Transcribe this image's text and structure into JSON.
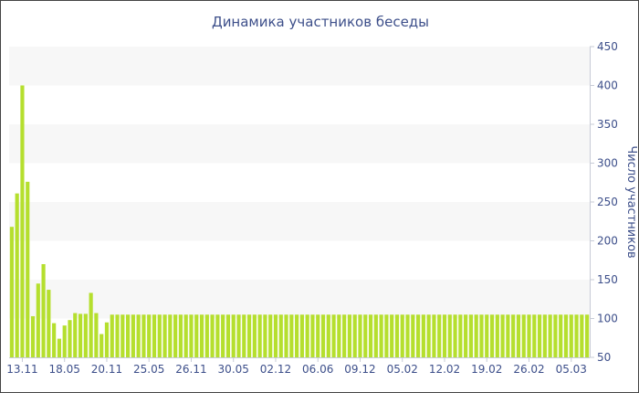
{
  "chart_data": {
    "type": "bar",
    "title": "Динамика участников беседы",
    "xlabel": "",
    "ylabel": "Число участников",
    "ylim": [
      50,
      450
    ],
    "yticks": [
      50,
      100,
      150,
      200,
      250,
      300,
      350,
      400,
      450
    ],
    "y_axis_position": "right",
    "grid": true,
    "legend": "none",
    "bar_color": "#b5df2e",
    "band_color": "#f7f7f7",
    "text_color": "#3d4f8a",
    "x_tick_labels": [
      {
        "label": "13.11",
        "index": 2
      },
      {
        "label": "18.05",
        "index": 10
      },
      {
        "label": "20.11",
        "index": 18
      },
      {
        "label": "25.05",
        "index": 26
      },
      {
        "label": "26.11",
        "index": 34
      },
      {
        "label": "30.05",
        "index": 42
      },
      {
        "label": "02.12",
        "index": 50
      },
      {
        "label": "06.06",
        "index": 58
      },
      {
        "label": "09.12",
        "index": 66
      },
      {
        "label": "05.02",
        "index": 74
      },
      {
        "label": "12.02",
        "index": 82
      },
      {
        "label": "19.02",
        "index": 90
      },
      {
        "label": "26.02",
        "index": 98
      },
      {
        "label": "05.03",
        "index": 106
      }
    ],
    "values": [
      218,
      261,
      400,
      276,
      103,
      145,
      170,
      137,
      94,
      74,
      91,
      98,
      107,
      106,
      106,
      133,
      107,
      80,
      95,
      105,
      105,
      105,
      105,
      105,
      105,
      105,
      105,
      105,
      105,
      105,
      105,
      105,
      105,
      105,
      105,
      105,
      105,
      105,
      105,
      105,
      105,
      105,
      105,
      105,
      105,
      105,
      105,
      105,
      105,
      105,
      105,
      105,
      105,
      105,
      105,
      105,
      105,
      105,
      105,
      105,
      105,
      105,
      105,
      105,
      105,
      105,
      105,
      105,
      105,
      105,
      105,
      105,
      105,
      105,
      105,
      105,
      105,
      105,
      105,
      105,
      105,
      105,
      105,
      105,
      105,
      105,
      105,
      105,
      105,
      105,
      105,
      105,
      105,
      105,
      105,
      105,
      105,
      105,
      105,
      105,
      105,
      105,
      105,
      105,
      105,
      105,
      105,
      105,
      105,
      105
    ]
  }
}
